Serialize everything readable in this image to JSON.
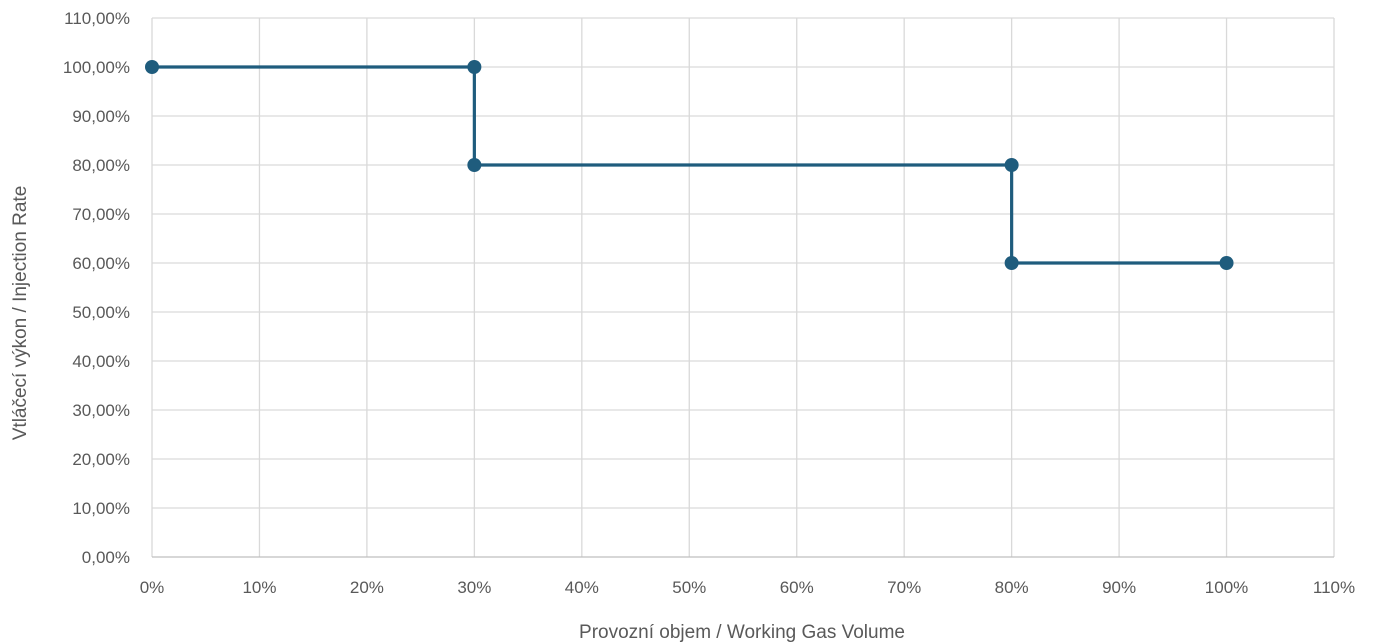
{
  "chart_data": {
    "type": "line",
    "title": "",
    "xlabel": "Provozní objem / Working Gas Volume",
    "ylabel": "Vtláčecí výkon / Injection Rate",
    "xlim": [
      0,
      110
    ],
    "ylim": [
      0,
      110
    ],
    "x_ticks": [
      "0%",
      "10%",
      "20%",
      "30%",
      "40%",
      "50%",
      "60%",
      "70%",
      "80%",
      "90%",
      "100%",
      "110%"
    ],
    "y_ticks": [
      "0,00%",
      "10,00%",
      "20,00%",
      "30,00%",
      "40,00%",
      "50,00%",
      "60,00%",
      "70,00%",
      "80,00%",
      "90,00%",
      "100,00%",
      "110,00%"
    ],
    "grid": true,
    "legend": "none",
    "series": [
      {
        "color": "#1f5c7d",
        "points": [
          {
            "x": 0,
            "y": 100
          },
          {
            "x": 30,
            "y": 100
          },
          {
            "x": 30,
            "y": 80
          },
          {
            "x": 80,
            "y": 80
          },
          {
            "x": 80,
            "y": 60
          },
          {
            "x": 100,
            "y": 60
          }
        ]
      }
    ]
  }
}
